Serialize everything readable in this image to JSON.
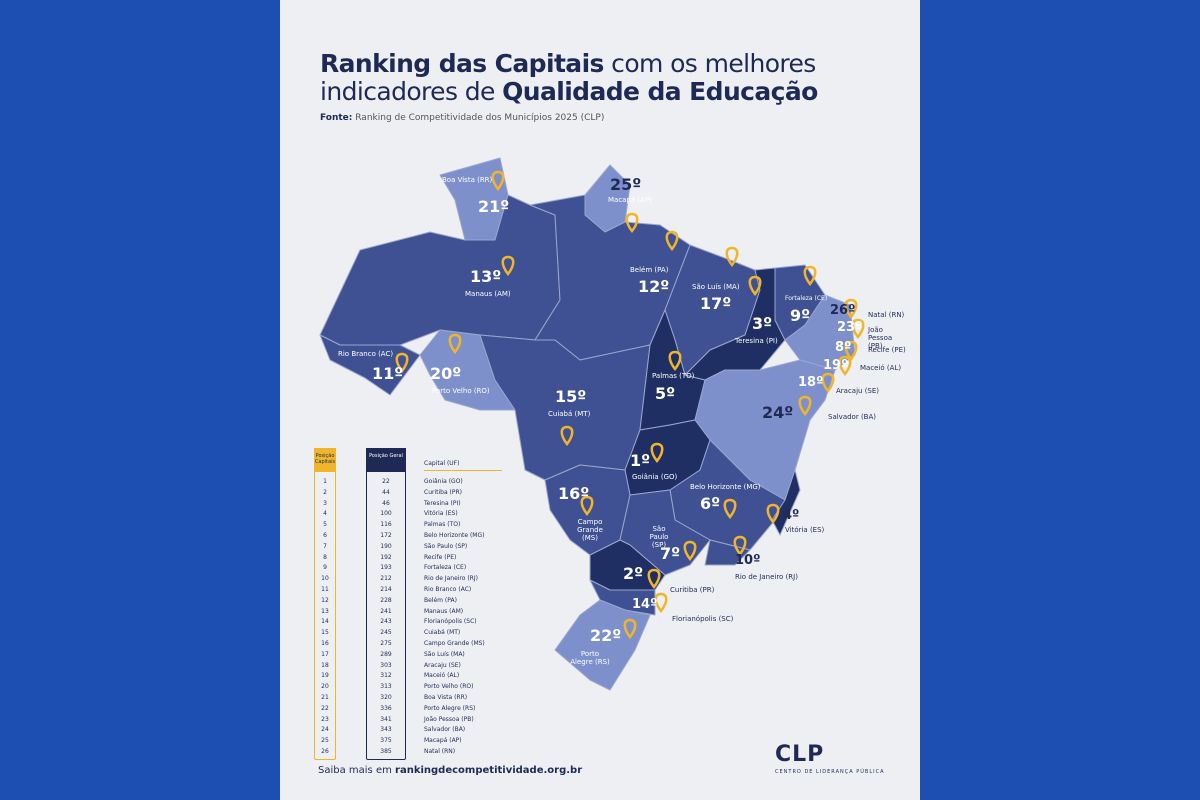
{
  "title": {
    "bold1": "Ranking das Capitais",
    "normal1": " com os melhores",
    "normal2": "indicadores de ",
    "bold2": "Qualidade da Educação"
  },
  "source": {
    "label": "Fonte:",
    "text": " Ranking de Competitividade dos Municípios 2025 (CLP)"
  },
  "colors": {
    "background": "#1d4fb3",
    "card": "#eeeff2",
    "navy": "#1e2a55",
    "dark_state": "#1f2f63",
    "mid_state": "#3f5192",
    "light_state": "#7d90cc",
    "pin": "#f0b52a"
  },
  "map": {
    "labels": [
      {
        "rank": "21º",
        "city": "Boa Vista (RR)"
      },
      {
        "rank": "25º",
        "city": "Macapá (AP)"
      },
      {
        "rank": "13º",
        "city": "Manaus (AM)"
      },
      {
        "rank": "12º",
        "city": "Belém (PA)"
      },
      {
        "rank": "17º",
        "city": "São Luís (MA)"
      },
      {
        "rank": "9º",
        "city": "Fortaleza (CE)"
      },
      {
        "rank": "3º",
        "city": "Teresina (PI)"
      },
      {
        "rank": "5º",
        "city": "Palmas (TO)"
      },
      {
        "rank": "11º",
        "city": "Rio Branco (AC)"
      },
      {
        "rank": "20º",
        "city": "Porto Velho (RO)"
      },
      {
        "rank": "15º",
        "city": "Cuiabá (MT)"
      },
      {
        "rank": "1º",
        "city": "Goiânia (GO)"
      },
      {
        "rank": "6º",
        "city": "Belo Horizonte (MG)"
      },
      {
        "rank": "16º",
        "city": "Campo Grande (MS)"
      },
      {
        "rank": "7º",
        "city": "São Paulo (SP)"
      },
      {
        "rank": "2º",
        "city": "Curitiba (PR)"
      },
      {
        "rank": "22º",
        "city": "Porto Alegre (RS)"
      },
      {
        "rank": "26º",
        "city": "Natal (RN)"
      },
      {
        "rank": "23º",
        "city": "João Pessoa (PB)"
      },
      {
        "rank": "8º",
        "city": "Recife (PE)"
      },
      {
        "rank": "19º",
        "city": "Maceió (AL)"
      },
      {
        "rank": "18º",
        "city": "Aracaju (SE)"
      },
      {
        "rank": "24º",
        "city": "Salvador (BA)"
      },
      {
        "rank": "4º",
        "city": "Vitória (ES)"
      },
      {
        "rank": "10º",
        "city": "Rio de Janeiro (RJ)"
      },
      {
        "rank": "14º",
        "city": "Florianópolis (SC)"
      }
    ]
  },
  "table": {
    "headers": [
      "Posição Capitais",
      "Posição Geral",
      "Capital (UF)"
    ],
    "rows": [
      [
        "1",
        "22",
        "Goiânia (GO)"
      ],
      [
        "2",
        "44",
        "Curitiba (PR)"
      ],
      [
        "3",
        "46",
        "Teresina (PI)"
      ],
      [
        "4",
        "100",
        "Vitória (ES)"
      ],
      [
        "5",
        "116",
        "Palmas (TO)"
      ],
      [
        "6",
        "172",
        "Belo Horizonte (MG)"
      ],
      [
        "7",
        "190",
        "São Paulo (SP)"
      ],
      [
        "8",
        "192",
        "Recife (PE)"
      ],
      [
        "9",
        "193",
        "Fortaleza (CE)"
      ],
      [
        "10",
        "212",
        "Rio de Janeiro (RJ)"
      ],
      [
        "11",
        "214",
        "Rio Branco (AC)"
      ],
      [
        "12",
        "228",
        "Belém (PA)"
      ],
      [
        "13",
        "241",
        "Manaus (AM)"
      ],
      [
        "14",
        "243",
        "Florianópolis (SC)"
      ],
      [
        "15",
        "245",
        "Cuiabá (MT)"
      ],
      [
        "16",
        "275",
        "Campo Grande (MS)"
      ],
      [
        "17",
        "289",
        "São Luís (MA)"
      ],
      [
        "18",
        "303",
        "Aracaju (SE)"
      ],
      [
        "19",
        "312",
        "Maceió (AL)"
      ],
      [
        "20",
        "313",
        "Porto Velho (RO)"
      ],
      [
        "21",
        "320",
        "Boa Vista (RR)"
      ],
      [
        "22",
        "336",
        "Porto Alegre (RS)"
      ],
      [
        "23",
        "341",
        "João Pessoa (PB)"
      ],
      [
        "24",
        "343",
        "Salvador (BA)"
      ],
      [
        "25",
        "375",
        "Macapá (AP)"
      ],
      [
        "26",
        "385",
        "Natal (RN)"
      ]
    ]
  },
  "footer": {
    "prefix": "Saiba mais em ",
    "link": "rankingdecompetitividade.org.br"
  },
  "logo": {
    "name": "CLP",
    "subtitle": "CENTRO DE LIDERANÇA PÚBLICA"
  }
}
